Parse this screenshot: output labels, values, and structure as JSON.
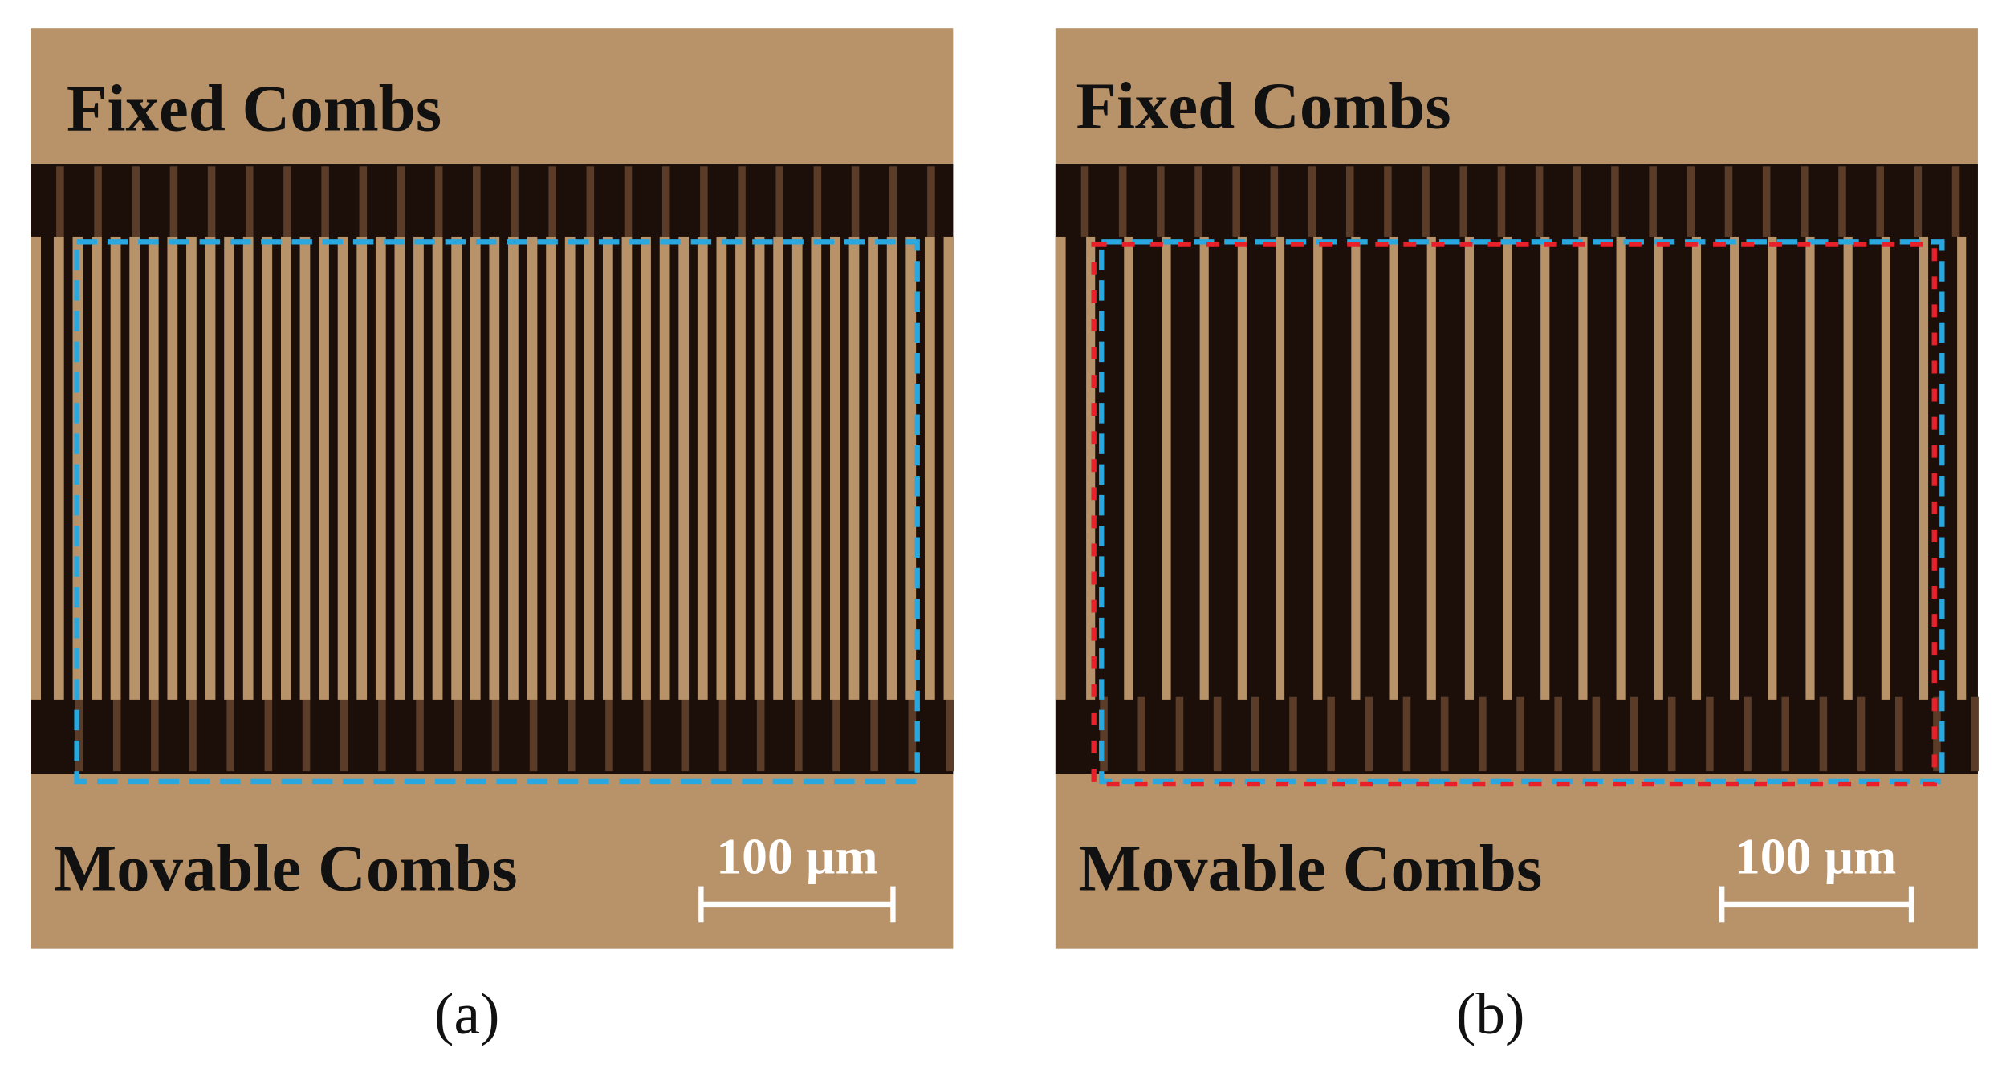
{
  "panels": [
    {
      "caption": "(a)",
      "top_label": "Fixed Combs",
      "bottom_label": "Movable Combs",
      "scale_bar": "100 µm"
    },
    {
      "caption": "(b)",
      "top_label": "Fixed Combs",
      "bottom_label": "Movable Combs",
      "scale_bar": "100 µm"
    }
  ]
}
